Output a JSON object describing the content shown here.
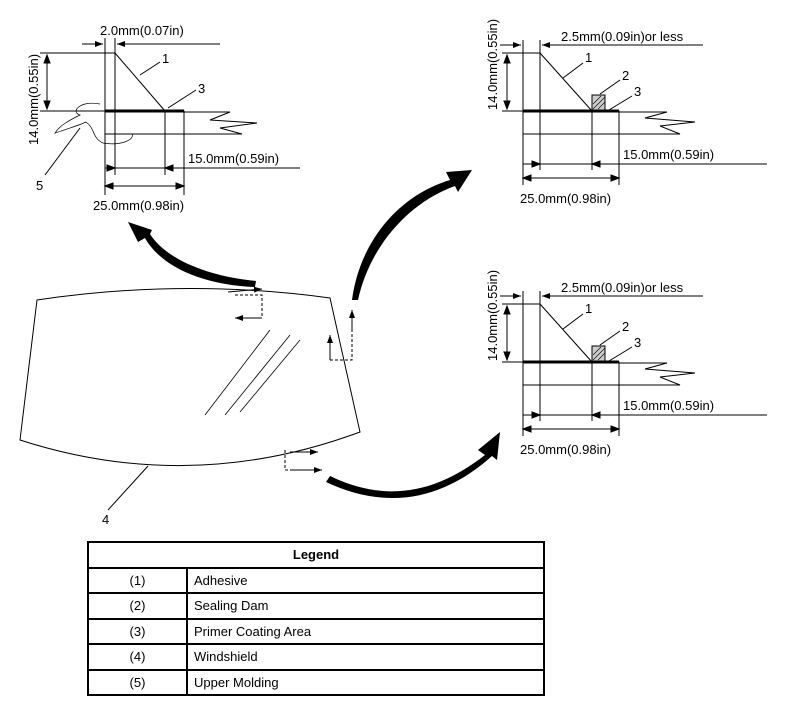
{
  "details": {
    "upper": {
      "gap": "2.0mm(0.07in)",
      "height": "14.0mm(0.55in)",
      "inner_width": "15.0mm(0.59in)",
      "outer_width": "25.0mm(0.98in)",
      "callouts": [
        "1",
        "3",
        "5"
      ]
    },
    "side": {
      "gap": "2.5mm(0.09in)or less",
      "height": "14.0mm(0.55in)",
      "inner_width": "15.0mm(0.59in)",
      "outer_width": "25.0mm(0.98in)",
      "callouts": [
        "1",
        "2",
        "3"
      ]
    },
    "lower": {
      "gap": "2.5mm(0.09in)or less",
      "height": "14.0mm(0.55in)",
      "inner_width": "15.0mm(0.59in)",
      "outer_width": "25.0mm(0.98in)",
      "callouts": [
        "1",
        "2",
        "3"
      ]
    }
  },
  "windshield_callout": "4",
  "legend": {
    "title": "Legend",
    "rows": [
      {
        "num": "(1)",
        "label": "Adhesive"
      },
      {
        "num": "(2)",
        "label": "Sealing Dam"
      },
      {
        "num": "(3)",
        "label": "Primer Coating Area"
      },
      {
        "num": "(4)",
        "label": "Windshield"
      },
      {
        "num": "(5)",
        "label": "Upper Molding"
      }
    ]
  }
}
